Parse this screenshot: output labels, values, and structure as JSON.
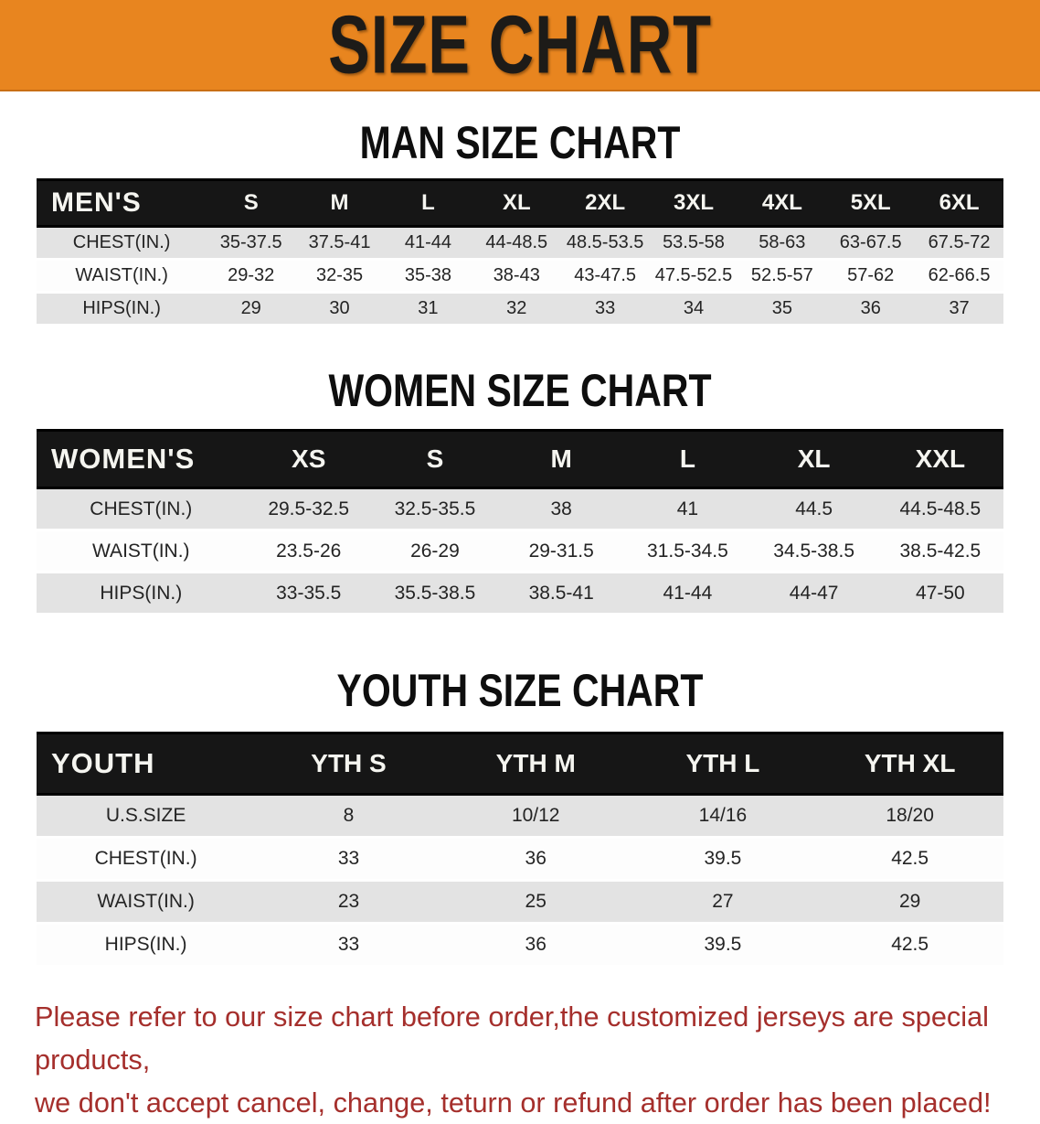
{
  "banner": {
    "title": "SIZE CHART"
  },
  "colors": {
    "banner_bg": "#e8851f",
    "band_bg": "#161616",
    "band_text": "#f5f5f0",
    "shaded_row_bg": "#e3e3e3",
    "note_red": "#a52f2c"
  },
  "tables": [
    {
      "heading": "MAN SIZE CHART",
      "corner_label": "MEN'S",
      "columns": [
        "S",
        "M",
        "L",
        "XL",
        "2XL",
        "3XL",
        "4XL",
        "5XL",
        "6XL"
      ],
      "rows": [
        {
          "label": "CHEST(IN.)",
          "values": [
            "35-37.5",
            "37.5-41",
            "41-44",
            "44-48.5",
            "48.5-53.5",
            "53.5-58",
            "58-63",
            "63-67.5",
            "67.5-72"
          ]
        },
        {
          "label": "WAIST(IN.)",
          "values": [
            "29-32",
            "32-35",
            "35-38",
            "38-43",
            "43-47.5",
            "47.5-52.5",
            "52.5-57",
            "57-62",
            "62-66.5"
          ]
        },
        {
          "label": "HIPS(IN.)",
          "values": [
            "29",
            "30",
            "31",
            "32",
            "33",
            "34",
            "35",
            "36",
            "37"
          ]
        }
      ]
    },
    {
      "heading": "WOMEN SIZE CHART",
      "corner_label": "WOMEN'S",
      "columns": [
        "XS",
        "S",
        "M",
        "L",
        "XL",
        "XXL"
      ],
      "rows": [
        {
          "label": "CHEST(IN.)",
          "values": [
            "29.5-32.5",
            "32.5-35.5",
            "38",
            "41",
            "44.5",
            "44.5-48.5"
          ]
        },
        {
          "label": "WAIST(IN.)",
          "values": [
            "23.5-26",
            "26-29",
            "29-31.5",
            "31.5-34.5",
            "34.5-38.5",
            "38.5-42.5"
          ]
        },
        {
          "label": "HIPS(IN.)",
          "values": [
            "33-35.5",
            "35.5-38.5",
            "38.5-41",
            "41-44",
            "44-47",
            "47-50"
          ]
        }
      ]
    },
    {
      "heading": "YOUTH SIZE CHART",
      "corner_label": "YOUTH",
      "columns": [
        "YTH S",
        "YTH M",
        "YTH L",
        "YTH XL"
      ],
      "rows": [
        {
          "label": "U.S.SIZE",
          "values": [
            "8",
            "10/12",
            "14/16",
            "18/20"
          ]
        },
        {
          "label": "CHEST(IN.)",
          "values": [
            "33",
            "36",
            "39.5",
            "42.5"
          ]
        },
        {
          "label": "WAIST(IN.)",
          "values": [
            "23",
            "25",
            "27",
            "29"
          ]
        },
        {
          "label": "HIPS(IN.)",
          "values": [
            "33",
            "36",
            "39.5",
            "42.5"
          ]
        }
      ]
    }
  ],
  "note": {
    "line1": "Please refer to our size chart before order,the customized jerseys are special products,",
    "line2": "we don't accept cancel, change, teturn or refund after order has been placed!"
  },
  "chart_data": [
    {
      "type": "table",
      "title": "MAN SIZE CHART",
      "columns": [
        "MEN'S",
        "S",
        "M",
        "L",
        "XL",
        "2XL",
        "3XL",
        "4XL",
        "5XL",
        "6XL"
      ],
      "rows": [
        [
          "CHEST(IN.)",
          "35-37.5",
          "37.5-41",
          "41-44",
          "44-48.5",
          "48.5-53.5",
          "53.5-58",
          "58-63",
          "63-67.5",
          "67.5-72"
        ],
        [
          "WAIST(IN.)",
          "29-32",
          "32-35",
          "35-38",
          "38-43",
          "43-47.5",
          "47.5-52.5",
          "52.5-57",
          "57-62",
          "62-66.5"
        ],
        [
          "HIPS(IN.)",
          "29",
          "30",
          "31",
          "32",
          "33",
          "34",
          "35",
          "36",
          "37"
        ]
      ]
    },
    {
      "type": "table",
      "title": "WOMEN SIZE CHART",
      "columns": [
        "WOMEN'S",
        "XS",
        "S",
        "M",
        "L",
        "XL",
        "XXL"
      ],
      "rows": [
        [
          "CHEST(IN.)",
          "29.5-32.5",
          "32.5-35.5",
          "38",
          "41",
          "44.5",
          "44.5-48.5"
        ],
        [
          "WAIST(IN.)",
          "23.5-26",
          "26-29",
          "29-31.5",
          "31.5-34.5",
          "34.5-38.5",
          "38.5-42.5"
        ],
        [
          "HIPS(IN.)",
          "33-35.5",
          "35.5-38.5",
          "38.5-41",
          "41-44",
          "44-47",
          "47-50"
        ]
      ]
    },
    {
      "type": "table",
      "title": "YOUTH SIZE CHART",
      "columns": [
        "YOUTH",
        "YTH S",
        "YTH M",
        "YTH L",
        "YTH XL"
      ],
      "rows": [
        [
          "U.S.SIZE",
          "8",
          "10/12",
          "14/16",
          "18/20"
        ],
        [
          "CHEST(IN.)",
          "33",
          "36",
          "39.5",
          "42.5"
        ],
        [
          "WAIST(IN.)",
          "23",
          "25",
          "27",
          "29"
        ],
        [
          "HIPS(IN.)",
          "33",
          "36",
          "39.5",
          "42.5"
        ]
      ]
    }
  ]
}
